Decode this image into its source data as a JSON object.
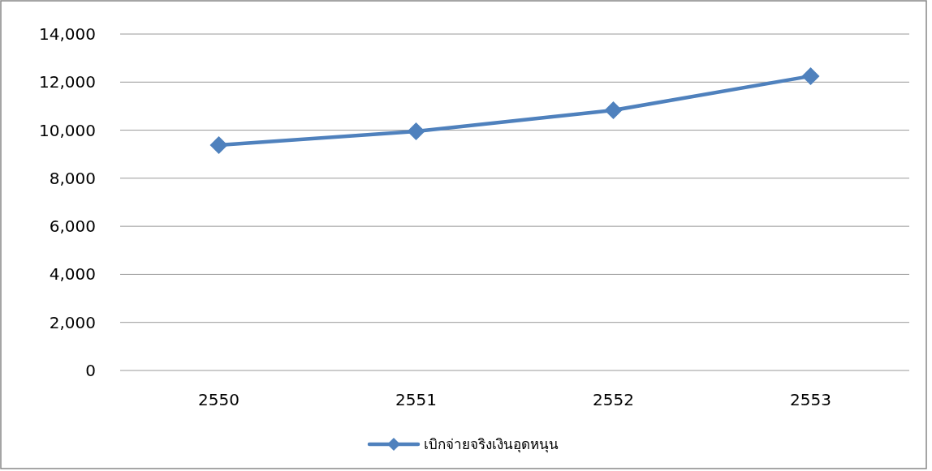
{
  "chart_data": {
    "type": "line",
    "categories": [
      "2550",
      "2551",
      "2552",
      "2553"
    ],
    "series": [
      {
        "name": "เบิกจ่ายจริงเงินอุดหนุน",
        "color": "#4f81bd",
        "values": [
          9380,
          9950,
          10830,
          12250
        ]
      }
    ],
    "ylim": [
      0,
      14000
    ],
    "yticks": [
      {
        "value": 0,
        "label": "0"
      },
      {
        "value": 2000,
        "label": "2,000"
      },
      {
        "value": 4000,
        "label": "4,000"
      },
      {
        "value": 6000,
        "label": "6,000"
      },
      {
        "value": 8000,
        "label": "8,000"
      },
      {
        "value": 10000,
        "label": "10,000"
      },
      {
        "value": 12000,
        "label": "12,000"
      },
      {
        "value": 14000,
        "label": "14,000"
      }
    ],
    "grid": "y",
    "legend": "bottom",
    "marker": "diamond",
    "line_style": "solid"
  }
}
